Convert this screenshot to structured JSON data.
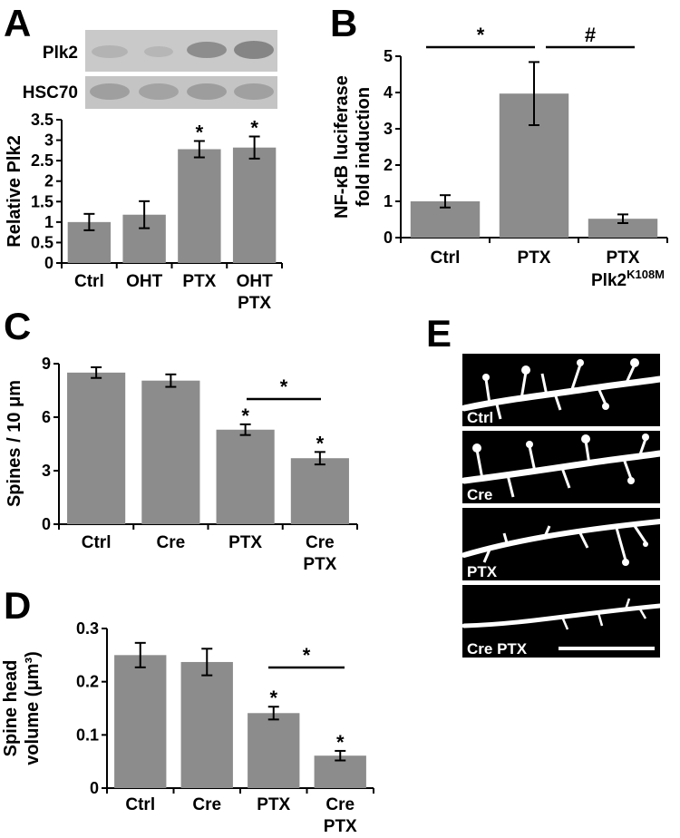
{
  "colors": {
    "bar": "#8c8c8c",
    "axis": "#000000",
    "background": "#ffffff",
    "blot_band": "#9a9a9a"
  },
  "panels": {
    "A": {
      "letter": "A",
      "blot_rows": [
        "Plk2",
        "HSC70"
      ]
    },
    "B": {
      "letter": "B",
      "extra_label_base": "Plk2",
      "extra_label_sup": "K108M",
      "sig": [
        {
          "between": [
            0,
            1
          ],
          "symbol": "*"
        },
        {
          "between": [
            1,
            2
          ],
          "symbol": "#"
        }
      ]
    },
    "C": {
      "letter": "C",
      "sig": [
        {
          "between": [
            2,
            3
          ],
          "symbol": "*"
        }
      ]
    },
    "D": {
      "letter": "D",
      "sig": [
        {
          "between": [
            2,
            3
          ],
          "symbol": "*"
        }
      ]
    },
    "E": {
      "letter": "E",
      "images": [
        "Ctrl",
        "Cre",
        "PTX",
        "Cre PTX"
      ]
    }
  },
  "chart_data": [
    {
      "id": "A",
      "type": "bar",
      "categories": [
        [
          "Ctrl"
        ],
        [
          "OHT"
        ],
        [
          "PTX"
        ],
        [
          "OHT",
          "PTX"
        ]
      ],
      "values": [
        1.0,
        1.18,
        2.78,
        2.82
      ],
      "errors": [
        0.2,
        0.33,
        0.2,
        0.27
      ],
      "significance": [
        "",
        "",
        "*",
        "*"
      ],
      "ylabel": "Relative Plk2",
      "ylim": [
        0,
        3.5
      ],
      "yticks": [
        "0",
        "0.5",
        "1",
        "1.5",
        "2",
        "2.5",
        "3",
        "3.5"
      ],
      "grid": false
    },
    {
      "id": "B",
      "type": "bar",
      "categories": [
        [
          "Ctrl"
        ],
        [
          "PTX"
        ],
        [
          "PTX"
        ]
      ],
      "values": [
        1.0,
        3.97,
        0.52
      ],
      "errors": [
        0.17,
        0.87,
        0.12
      ],
      "significance": [
        "",
        "",
        ""
      ],
      "ylabel": [
        "NF-κB luciferase",
        "fold induction"
      ],
      "ylim": [
        0,
        5
      ],
      "yticks": [
        "0",
        "1",
        "2",
        "3",
        "4",
        "5"
      ],
      "grid": false
    },
    {
      "id": "C",
      "type": "bar",
      "categories": [
        [
          "Ctrl"
        ],
        [
          "Cre"
        ],
        [
          "PTX"
        ],
        [
          "Cre",
          "PTX"
        ]
      ],
      "values": [
        8.5,
        8.05,
        5.3,
        3.7
      ],
      "errors": [
        0.3,
        0.35,
        0.3,
        0.35
      ],
      "significance": [
        "",
        "",
        "*",
        "*"
      ],
      "ylabel": "Spines / 10 μm",
      "ylim": [
        0,
        9
      ],
      "yticks": [
        "0",
        "3",
        "6",
        "9"
      ],
      "grid": false
    },
    {
      "id": "D",
      "type": "bar",
      "categories": [
        [
          "Ctrl"
        ],
        [
          "Cre"
        ],
        [
          "PTX"
        ],
        [
          "Cre",
          "PTX"
        ]
      ],
      "values": [
        0.25,
        0.237,
        0.141,
        0.061
      ],
      "errors": [
        0.023,
        0.025,
        0.012,
        0.009
      ],
      "significance": [
        "",
        "",
        "*",
        "*"
      ],
      "ylabel": [
        "Spine head",
        "volume (μm³)"
      ],
      "ylim": [
        0,
        0.3
      ],
      "yticks": [
        "0",
        "0.1",
        "0.2",
        "0.3"
      ],
      "grid": false
    }
  ]
}
